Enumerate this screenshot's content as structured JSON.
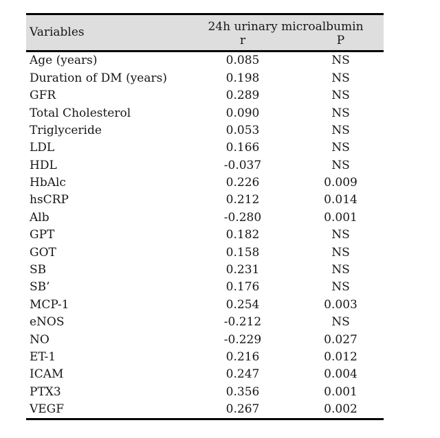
{
  "page": {
    "background_color": "#ffffff"
  },
  "table": {
    "col1_header": "Variables",
    "group_header": "24h urinary microalbumin",
    "sub_headers": [
      "r",
      "P"
    ],
    "header_bg": "#dedede",
    "border_color": "#000000",
    "text_color": "#161616",
    "rows": [
      {
        "variable": "Age (years)",
        "r": "0.085",
        "p": "NS"
      },
      {
        "variable": "Duration of DM (years)",
        "r": "0.198",
        "p": "NS"
      },
      {
        "variable": "GFR",
        "r": "0.289",
        "p": "NS"
      },
      {
        "variable": "Total Cholesterol",
        "r": "0.090",
        "p": "NS"
      },
      {
        "variable": "Triglyceride",
        "r": "0.053",
        "p": "NS"
      },
      {
        "variable": "LDL",
        "r": "0.166",
        "p": "NS"
      },
      {
        "variable": "HDL",
        "r": "-0.037",
        "p": "NS"
      },
      {
        "variable": "HbAlc",
        "r": "0.226",
        "p": "0.009"
      },
      {
        "variable": "hsCRP",
        "r": "0.212",
        "p": "0.014"
      },
      {
        "variable": "Alb",
        "r": "-0.280",
        "p": "0.001"
      },
      {
        "variable": "GPT",
        "r": "0.182",
        "p": "NS"
      },
      {
        "variable": "GOT",
        "r": "0.158",
        "p": "NS"
      },
      {
        "variable": "SB",
        "r": "0.231",
        "p": "NS"
      },
      {
        "variable": "SB’",
        "r": "0.176",
        "p": "NS"
      },
      {
        "variable": "MCP-1",
        "r": "0.254",
        "p": "0.003"
      },
      {
        "variable": "eNOS",
        "r": "-0.212",
        "p": "NS"
      },
      {
        "variable": "NO",
        "r": "-0.229",
        "p": "0.027"
      },
      {
        "variable": "ET-1",
        "r": "0.216",
        "p": "0.012"
      },
      {
        "variable": "ICAM",
        "r": "0.247",
        "p": "0.004"
      },
      {
        "variable": "PTX3",
        "r": "0.356",
        "p": "0.001"
      },
      {
        "variable": "VEGF",
        "r": "0.267",
        "p": "0.002"
      }
    ]
  }
}
